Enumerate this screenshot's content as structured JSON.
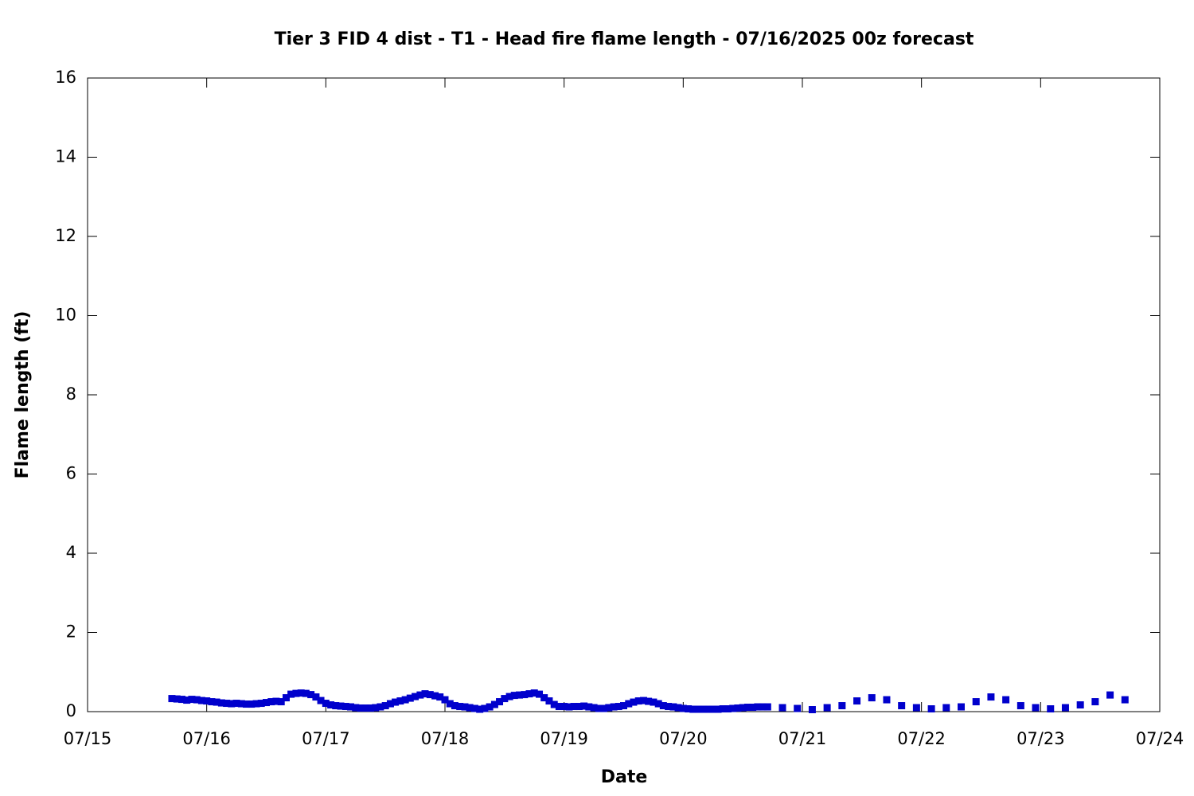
{
  "chart_data": {
    "type": "scatter",
    "title": "Tier 3 FID 4 dist - T1 - Head fire flame length - 07/16/2025 00z forecast",
    "x_label": "Date",
    "y_label": "Flame length (ft)",
    "xlim": [
      0,
      9
    ],
    "xticks": [
      {
        "value": 0,
        "label": "07/15"
      },
      {
        "value": 1,
        "label": "07/16"
      },
      {
        "value": 2,
        "label": "07/17"
      },
      {
        "value": 3,
        "label": "07/18"
      },
      {
        "value": 4,
        "label": "07/19"
      },
      {
        "value": 5,
        "label": "07/20"
      },
      {
        "value": 6,
        "label": "07/21"
      },
      {
        "value": 7,
        "label": "07/22"
      },
      {
        "value": 8,
        "label": "07/23"
      },
      {
        "value": 9,
        "label": "07/24"
      }
    ],
    "ylim": [
      0,
      16
    ],
    "yticks": [
      0,
      2,
      4,
      6,
      8,
      10,
      12,
      14,
      16
    ],
    "series": [
      {
        "color": "#0000cc",
        "x": [
          0.708,
          0.75,
          0.792,
          0.833,
          0.875,
          0.917,
          0.958,
          1,
          1.042,
          1.083,
          1.125,
          1.167,
          1.208,
          1.25,
          1.292,
          1.333,
          1.375,
          1.417,
          1.458,
          1.5,
          1.542,
          1.583,
          1.625,
          1.667,
          1.708,
          1.75,
          1.792,
          1.833,
          1.875,
          1.917,
          1.958,
          2,
          2.042,
          2.083,
          2.125,
          2.167,
          2.208,
          2.25,
          2.292,
          2.333,
          2.375,
          2.417,
          2.458,
          2.5,
          2.542,
          2.583,
          2.625,
          2.667,
          2.708,
          2.75,
          2.792,
          2.833,
          2.875,
          2.917,
          2.958,
          3,
          3.042,
          3.083,
          3.125,
          3.167,
          3.208,
          3.25,
          3.292,
          3.333,
          3.375,
          3.417,
          3.458,
          3.5,
          3.542,
          3.583,
          3.625,
          3.667,
          3.708,
          3.75,
          3.792,
          3.833,
          3.875,
          3.917,
          3.958,
          4,
          4.042,
          4.083,
          4.125,
          4.167,
          4.208,
          4.25,
          4.292,
          4.333,
          4.375,
          4.417,
          4.458,
          4.5,
          4.542,
          4.583,
          4.625,
          4.667,
          4.708,
          4.75,
          4.792,
          4.833,
          4.875,
          4.917,
          4.958,
          5,
          5.042,
          5.083,
          5.125,
          5.167,
          5.208,
          5.25,
          5.292,
          5.333,
          5.375,
          5.417,
          5.458,
          5.5,
          5.542,
          5.583,
          5.625,
          5.667,
          5.708,
          5.833,
          5.958,
          6.083,
          6.208,
          6.333,
          6.458,
          6.583,
          6.708,
          6.833,
          6.958,
          7.083,
          7.208,
          7.333,
          7.458,
          7.583,
          7.708,
          7.833,
          7.958,
          8.083,
          8.208,
          8.333,
          8.458,
          8.583,
          8.708
        ],
        "values": [
          0.33,
          0.32,
          0.31,
          0.29,
          0.31,
          0.3,
          0.28,
          0.27,
          0.25,
          0.24,
          0.22,
          0.21,
          0.2,
          0.21,
          0.2,
          0.19,
          0.19,
          0.2,
          0.21,
          0.23,
          0.25,
          0.26,
          0.25,
          0.35,
          0.44,
          0.46,
          0.47,
          0.46,
          0.43,
          0.37,
          0.28,
          0.21,
          0.17,
          0.15,
          0.14,
          0.13,
          0.12,
          0.1,
          0.09,
          0.09,
          0.09,
          0.1,
          0.12,
          0.15,
          0.2,
          0.24,
          0.27,
          0.3,
          0.34,
          0.38,
          0.42,
          0.45,
          0.43,
          0.4,
          0.37,
          0.3,
          0.2,
          0.15,
          0.13,
          0.12,
          0.1,
          0.08,
          0.06,
          0.08,
          0.12,
          0.18,
          0.25,
          0.33,
          0.38,
          0.41,
          0.42,
          0.43,
          0.45,
          0.47,
          0.44,
          0.35,
          0.27,
          0.18,
          0.13,
          0.13,
          0.12,
          0.13,
          0.13,
          0.14,
          0.12,
          0.1,
          0.08,
          0.08,
          0.1,
          0.12,
          0.13,
          0.15,
          0.2,
          0.24,
          0.27,
          0.28,
          0.26,
          0.24,
          0.2,
          0.15,
          0.13,
          0.12,
          0.1,
          0.08,
          0.07,
          0.06,
          0.06,
          0.06,
          0.06,
          0.06,
          0.06,
          0.07,
          0.07,
          0.08,
          0.09,
          0.1,
          0.11,
          0.11,
          0.12,
          0.12,
          0.12,
          0.1,
          0.08,
          0.05,
          0.1,
          0.15,
          0.27,
          0.35,
          0.3,
          0.15,
          0.1,
          0.07,
          0.1,
          0.12,
          0.25,
          0.37,
          0.3,
          0.15,
          0.1,
          0.07,
          0.1,
          0.17,
          0.25,
          0.42,
          0.3
        ]
      }
    ]
  }
}
